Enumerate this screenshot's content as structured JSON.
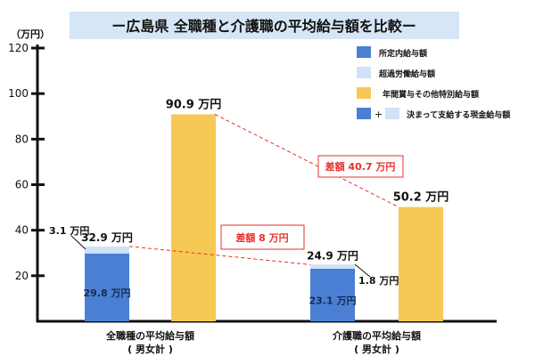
{
  "chart_data": {
    "type": "bar",
    "title": "ー広島県 全職種と介護職の平均給与額を比較ー",
    "ylabel": "（万円）",
    "ylim": [
      0,
      120
    ],
    "yticks": [
      20,
      40,
      60,
      80,
      100,
      120
    ],
    "categories": [
      {
        "line1": "全職種の平均給与額",
        "line2": "( 男女計 )"
      },
      {
        "line1": "介護職の平均給与額",
        "line2": "( 男女計 )"
      }
    ],
    "series": [
      {
        "name": "所定内給与額",
        "color": "#4a7fd4",
        "values": [
          29.8,
          23.1
        ],
        "labels": [
          "29.8 万円",
          "23.1 万円"
        ]
      },
      {
        "name": "超過労働給与額",
        "color": "#cfe2f7",
        "values": [
          3.1,
          1.8
        ],
        "labels": [
          "3.1 万円",
          "1.8 万円"
        ]
      },
      {
        "name": "年間賞与その他特別給与額",
        "color": "#f6c955",
        "values": [
          90.9,
          50.2
        ],
        "labels": [
          "90.9 万円",
          "50.2 万円"
        ]
      }
    ],
    "totals_monthly": {
      "values": [
        32.9,
        24.9
      ],
      "labels": [
        "32.9 万円",
        "24.9 万円"
      ]
    },
    "legend_combined": {
      "plus": "+",
      "label": "決まって支給する現金給与額"
    },
    "annotations": [
      {
        "text": "差額 8 万円",
        "color": "#e8302a"
      },
      {
        "text": "差額 40.7 万円",
        "color": "#e8302a"
      }
    ],
    "legend_placement": "top-right",
    "grid": false
  }
}
